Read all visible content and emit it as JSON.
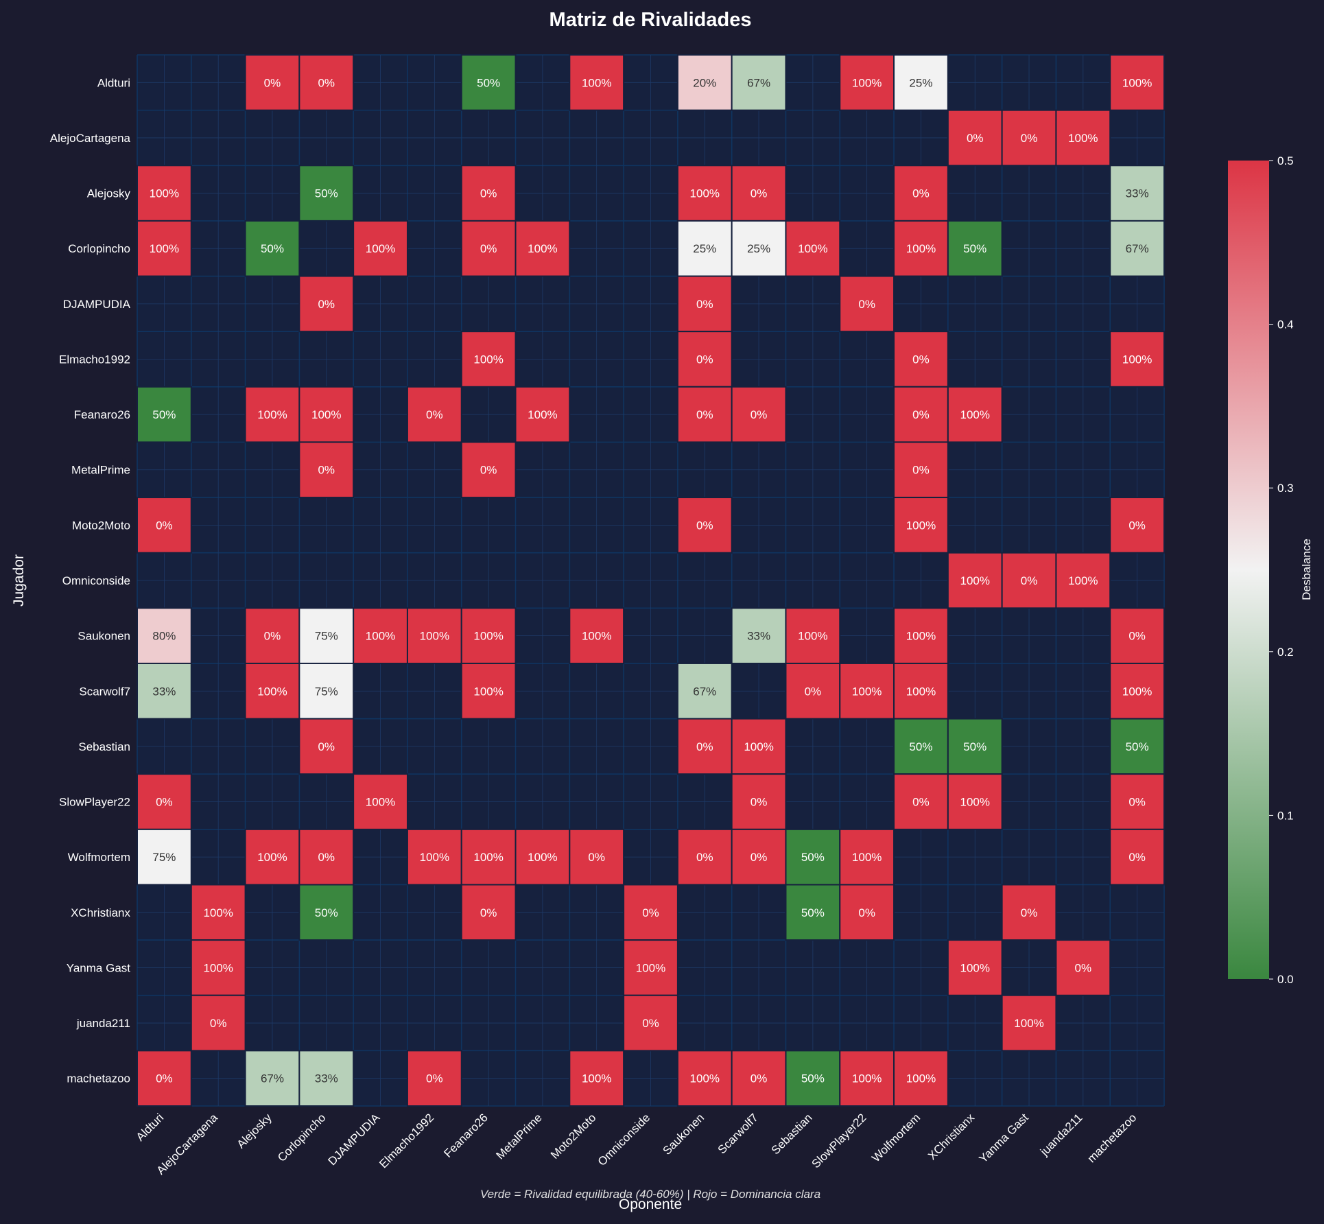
{
  "chart_data": {
    "type": "heatmap",
    "title": "Matriz de Rivalidades",
    "xlabel": "Oponente",
    "ylabel": "Jugador",
    "footnote": "Verde = Rivalidad equilibrada (40-60%) | Rojo = Dominancia clara",
    "players": [
      "Aldturi",
      "AlejoCartagena",
      "Alejosky",
      "Corlopincho",
      "DJAMPUDIA",
      "Elmacho1992",
      "Feanaro26",
      "MetalPrime",
      "Moto2Moto",
      "Omniconside",
      "Saukonen",
      "Scarwolf7",
      "Sebastian",
      "SlowPlayer22",
      "Wolfmortem",
      "XChristianx",
      "Yanma Gast",
      "juanda211",
      "machetazoo"
    ],
    "win_rates": [
      [
        null,
        null,
        0,
        0,
        null,
        null,
        50,
        null,
        100,
        null,
        20,
        67,
        null,
        100,
        25,
        null,
        null,
        null,
        100
      ],
      [
        null,
        null,
        null,
        null,
        null,
        null,
        null,
        null,
        null,
        null,
        null,
        null,
        null,
        null,
        null,
        0,
        0,
        100,
        null
      ],
      [
        100,
        null,
        null,
        50,
        null,
        null,
        0,
        null,
        null,
        null,
        100,
        0,
        null,
        null,
        0,
        null,
        null,
        null,
        33
      ],
      [
        100,
        null,
        50,
        null,
        100,
        null,
        0,
        100,
        null,
        null,
        25,
        25,
        100,
        null,
        100,
        50,
        null,
        null,
        67
      ],
      [
        null,
        null,
        null,
        0,
        null,
        null,
        null,
        null,
        null,
        null,
        0,
        null,
        null,
        0,
        null,
        null,
        null,
        null,
        null
      ],
      [
        null,
        null,
        null,
        null,
        null,
        null,
        100,
        null,
        null,
        null,
        0,
        null,
        null,
        null,
        0,
        null,
        null,
        null,
        100
      ],
      [
        50,
        null,
        100,
        100,
        null,
        0,
        null,
        100,
        null,
        null,
        0,
        0,
        null,
        null,
        0,
        100,
        null,
        null,
        null
      ],
      [
        null,
        null,
        null,
        0,
        null,
        null,
        0,
        null,
        null,
        null,
        null,
        null,
        null,
        null,
        0,
        null,
        null,
        null,
        null
      ],
      [
        0,
        null,
        null,
        null,
        null,
        null,
        null,
        null,
        null,
        null,
        0,
        null,
        null,
        null,
        100,
        null,
        null,
        null,
        0
      ],
      [
        null,
        null,
        null,
        null,
        null,
        null,
        null,
        null,
        null,
        null,
        null,
        null,
        null,
        null,
        null,
        100,
        0,
        100,
        null
      ],
      [
        80,
        null,
        0,
        75,
        100,
        100,
        100,
        null,
        100,
        null,
        null,
        33,
        100,
        null,
        100,
        null,
        null,
        null,
        0
      ],
      [
        33,
        null,
        100,
        75,
        null,
        null,
        100,
        null,
        null,
        null,
        67,
        null,
        0,
        100,
        100,
        null,
        null,
        null,
        100
      ],
      [
        null,
        null,
        null,
        0,
        null,
        null,
        null,
        null,
        null,
        null,
        0,
        100,
        null,
        null,
        50,
        50,
        null,
        null,
        50
      ],
      [
        0,
        null,
        null,
        null,
        100,
        null,
        null,
        null,
        null,
        null,
        null,
        0,
        null,
        null,
        0,
        100,
        null,
        null,
        0
      ],
      [
        75,
        null,
        100,
        0,
        null,
        100,
        100,
        100,
        0,
        null,
        0,
        0,
        50,
        100,
        null,
        null,
        null,
        null,
        0
      ],
      [
        null,
        100,
        null,
        50,
        null,
        null,
        0,
        null,
        null,
        0,
        null,
        null,
        50,
        0,
        null,
        null,
        0,
        null,
        null
      ],
      [
        null,
        100,
        null,
        null,
        null,
        null,
        null,
        null,
        null,
        100,
        null,
        null,
        null,
        null,
        null,
        100,
        null,
        0,
        null
      ],
      [
        null,
        0,
        null,
        null,
        null,
        null,
        null,
        null,
        null,
        0,
        null,
        null,
        null,
        null,
        null,
        null,
        100,
        null,
        null
      ],
      [
        0,
        null,
        67,
        33,
        null,
        0,
        null,
        null,
        100,
        null,
        100,
        0,
        50,
        100,
        100,
        null,
        null,
        null,
        null
      ]
    ],
    "colorbar": {
      "label": "Desbalance",
      "range": [
        0.0,
        0.5
      ],
      "ticks": [
        "0.0",
        "0.1",
        "0.2",
        "0.3",
        "0.4",
        "0.5"
      ],
      "colors": [
        "#3a873f",
        "#f2f2f2",
        "#dc3545"
      ]
    },
    "empty_cell_color": "#16213e",
    "grid": true
  }
}
